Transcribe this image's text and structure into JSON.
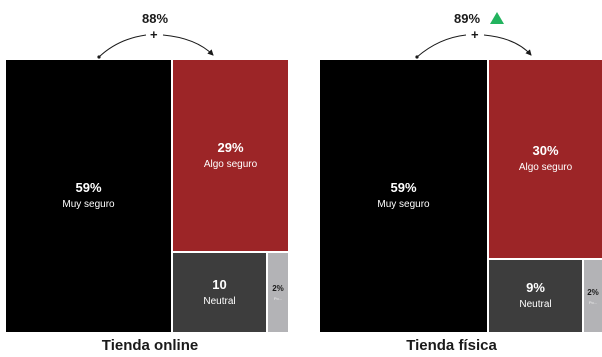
{
  "colors": {
    "muy_seguro": "#000000",
    "algo_seguro": "#9c2527",
    "neutral": "#3d3d3d",
    "poco_seguro": "#b3b3b6",
    "trend_up": "#22b35e"
  },
  "chart_data": [
    {
      "type": "treemap",
      "title": "Tienda online",
      "combined_label": "88%",
      "combined_symbol": "+",
      "tiles": [
        {
          "value_label": "59%",
          "category": "Muy seguro",
          "value": 59
        },
        {
          "value_label": "29%",
          "category": "Algo seguro",
          "value": 29
        },
        {
          "value_label": "10",
          "category": "Neutral",
          "value": 10
        },
        {
          "value_label": "2%",
          "category": "Po...",
          "value": 2
        }
      ]
    },
    {
      "type": "treemap",
      "title": "Tienda física",
      "combined_label": "89%",
      "combined_symbol": "+",
      "trend_icon": "triangle-up-icon",
      "tiles": [
        {
          "value_label": "59%",
          "category": "Muy seguro",
          "value": 59
        },
        {
          "value_label": "30%",
          "category": "Algo seguro",
          "value": 30
        },
        {
          "value_label": "9%",
          "category": "Neutral",
          "value": 9
        },
        {
          "value_label": "2%",
          "category": "Po...",
          "value": 2
        }
      ]
    }
  ]
}
